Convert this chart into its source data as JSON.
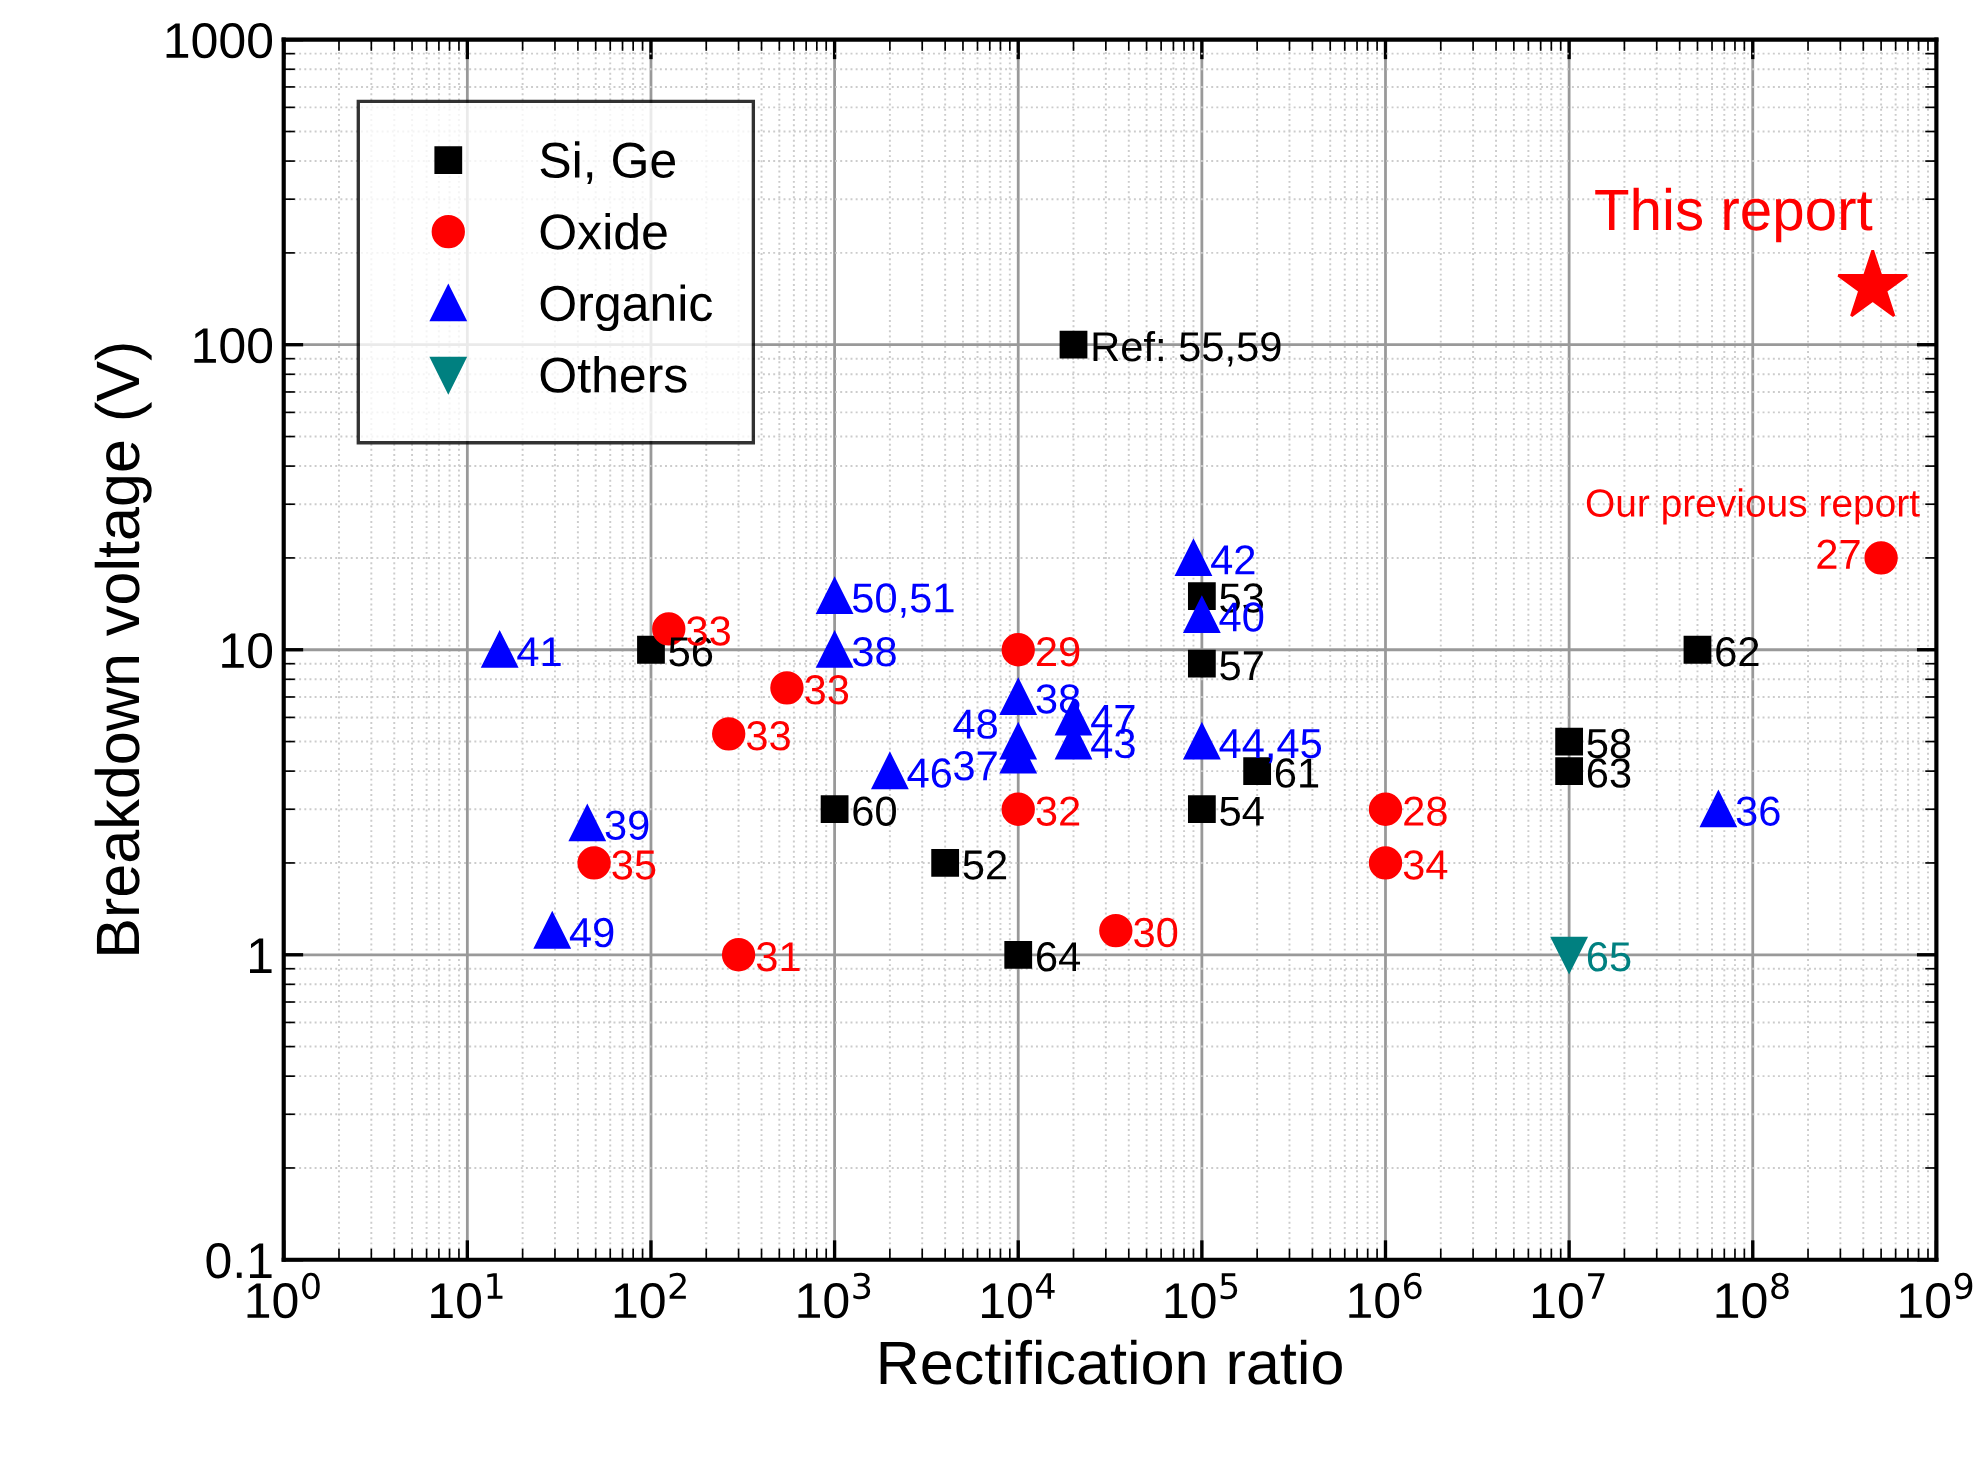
{
  "chart_data": {
    "type": "scatter",
    "xlabel": "Rectification ratio",
    "ylabel": "Breakdown voltage (V)",
    "log": "xy",
    "grid": true,
    "legend": "top left",
    "xlim": [
      1,
      1000000000
    ],
    "ylim": [
      0.1,
      1000
    ],
    "xticks": [
      {
        "value": 1,
        "label": "10$^{0}$"
      },
      {
        "value": 10,
        "label": "10$^{1}$"
      },
      {
        "value": 100,
        "label": "10$^{2}$"
      },
      {
        "value": 1000,
        "label": "10$^{3}$"
      },
      {
        "value": 10000,
        "label": "10$^{4}$"
      },
      {
        "value": 100000,
        "label": "10$^{5}$"
      },
      {
        "value": 1000000,
        "label": "10$^{6}$"
      },
      {
        "value": 10000000,
        "label": "10$^{7}$"
      },
      {
        "value": 100000000,
        "label": "10$^{8}$"
      },
      {
        "value": 1000000000,
        "label": "10$^{9}$"
      }
    ],
    "yticks": [
      0.1,
      1,
      10,
      100,
      1000
    ],
    "series": [
      {
        "name": "Si, Ge",
        "color": "#000000",
        "marker": "square",
        "x": [
          20000,
          100,
          100000,
          100000,
          1000,
          4000,
          10000,
          200000,
          100000,
          10000000,
          10000000,
          50000000
        ],
        "values": [
          100,
          10,
          15,
          9,
          3,
          2,
          1,
          4,
          3,
          5,
          4,
          10
        ]
      },
      {
        "name": "Oxide",
        "color": "#ff0000",
        "marker": "circle",
        "x": [
          125,
          550,
          265,
          10000,
          10000,
          49,
          300,
          34000,
          1000000,
          1000000,
          500000000
        ],
        "values": [
          11.7,
          7.5,
          5.3,
          10,
          3,
          2,
          1,
          1.2,
          3,
          2,
          20
        ]
      },
      {
        "name": "Organic",
        "color": "#0000ff",
        "marker": "triangle",
        "x": [
          15,
          1000,
          1000,
          2000,
          10000,
          10000,
          10000,
          20000,
          20000,
          90000,
          100000,
          100000,
          65000000,
          45,
          29
        ],
        "values": [
          10,
          15,
          10,
          4,
          7,
          5,
          4.5,
          6,
          5,
          20,
          13,
          5,
          3,
          2.7,
          1.2
        ]
      },
      {
        "name": "Others",
        "color": "#008080",
        "marker": "triangle_down",
        "x": [
          10000000
        ],
        "values": [
          1
        ]
      },
      {
        "name": "This report",
        "color": "#ff0000",
        "marker": "star",
        "x": [
          450000000
        ],
        "values": [
          155
        ]
      }
    ],
    "annotations": [
      {
        "text": "Ref: 55,59",
        "x": 20000,
        "y": 100
      },
      {
        "text": "56",
        "x": 100,
        "y": 10
      },
      {
        "text": "53",
        "x": 100000,
        "y": 15
      },
      {
        "text": "57",
        "x": 100000,
        "y": 9
      },
      {
        "text": "60",
        "x": 1000,
        "y": 3
      },
      {
        "text": "52",
        "x": 4000,
        "y": 2
      },
      {
        "text": "64",
        "x": 10000,
        "y": 1
      },
      {
        "text": "61",
        "x": 200000,
        "y": 4
      },
      {
        "text": "54",
        "x": 100000,
        "y": 3
      },
      {
        "text": "58",
        "x": 10000000,
        "y": 5
      },
      {
        "text": "63",
        "x": 10000000,
        "y": 4
      },
      {
        "text": "62",
        "x": 50000000,
        "y": 10
      },
      {
        "text": "33",
        "x": 125,
        "y": 11.7
      },
      {
        "text": "33",
        "x": 550,
        "y": 7.5
      },
      {
        "text": "33",
        "x": 265,
        "y": 5.3
      },
      {
        "text": "29",
        "x": 10000,
        "y": 10
      },
      {
        "text": "32",
        "x": 10000,
        "y": 3
      },
      {
        "text": "35",
        "x": 49,
        "y": 2
      },
      {
        "text": "31",
        "x": 300,
        "y": 1
      },
      {
        "text": "30",
        "x": 34000,
        "y": 1.2
      },
      {
        "text": "28",
        "x": 1000000,
        "y": 3
      },
      {
        "text": "34",
        "x": 1000000,
        "y": 2
      },
      {
        "text": "27",
        "x": 500000000,
        "y": 20
      },
      {
        "text": "Our previous report",
        "x": 500000000,
        "y": 20
      },
      {
        "text": "41",
        "x": 15,
        "y": 10
      },
      {
        "text": "50,51",
        "x": 1000,
        "y": 15
      },
      {
        "text": "38",
        "x": 1000,
        "y": 10
      },
      {
        "text": "46",
        "x": 2000,
        "y": 4
      },
      {
        "text": "38",
        "x": 10000,
        "y": 7
      },
      {
        "text": "48",
        "x": 10000,
        "y": 5
      },
      {
        "text": "37",
        "x": 10000,
        "y": 4.5
      },
      {
        "text": "47",
        "x": 20000,
        "y": 6
      },
      {
        "text": "43",
        "x": 20000,
        "y": 5
      },
      {
        "text": "42",
        "x": 90000,
        "y": 20
      },
      {
        "text": "40",
        "x": 100000,
        "y": 13
      },
      {
        "text": "44,45",
        "x": 100000,
        "y": 5
      },
      {
        "text": "36",
        "x": 65000000,
        "y": 3
      },
      {
        "text": "39",
        "x": 45,
        "y": 2.7
      },
      {
        "text": "49",
        "x": 29,
        "y": 1.2
      },
      {
        "text": "65",
        "x": 10000000,
        "y": 1
      }
    ]
  }
}
